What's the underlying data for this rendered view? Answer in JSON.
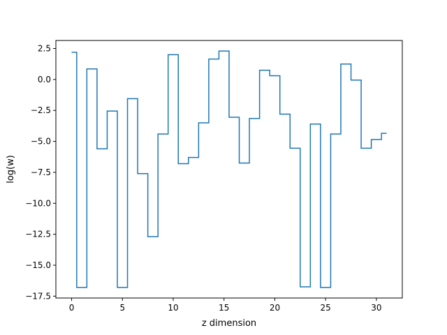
{
  "chart_data": {
    "type": "line",
    "drawstyle": "steps-mid",
    "xlabel": "z dimension",
    "ylabel": "log(w)",
    "xlim": [
      -1.55,
      32.55
    ],
    "ylim": [
      -17.65,
      3.15
    ],
    "grid": false,
    "legend": "none",
    "x_ticks": [
      0,
      5,
      10,
      15,
      20,
      25,
      30
    ],
    "x_tick_labels": [
      "0",
      "5",
      "10",
      "15",
      "20",
      "25",
      "30"
    ],
    "y_ticks": [
      2.5,
      0,
      -2.5,
      -5,
      -7.5,
      -10,
      -12.5,
      -15,
      -17.5
    ],
    "y_tick_labels": [
      "2.5",
      "0.0",
      "−2.5",
      "−5.0",
      "−7.5",
      "−10.0",
      "−12.5",
      "−15.0",
      "−17.5"
    ],
    "series": [
      {
        "color": "#1f77b4",
        "x": [
          0,
          1,
          2,
          3,
          4,
          5,
          6,
          7,
          8,
          9,
          10,
          11,
          12,
          13,
          14,
          15,
          16,
          17,
          18,
          19,
          20,
          21,
          22,
          23,
          24,
          25,
          26,
          27,
          28,
          29,
          30,
          31
        ],
        "values": [
          2.2,
          -16.8,
          0.85,
          -5.6,
          -2.55,
          -16.8,
          -1.55,
          -7.6,
          -12.7,
          -4.4,
          2.0,
          -6.8,
          -6.3,
          -3.5,
          1.65,
          2.3,
          -3.05,
          -6.75,
          -3.15,
          0.75,
          0.3,
          -2.8,
          -5.55,
          -16.75,
          -3.6,
          -16.8,
          -4.4,
          1.25,
          -0.05,
          -5.55,
          -4.85,
          -4.35
        ]
      }
    ]
  }
}
